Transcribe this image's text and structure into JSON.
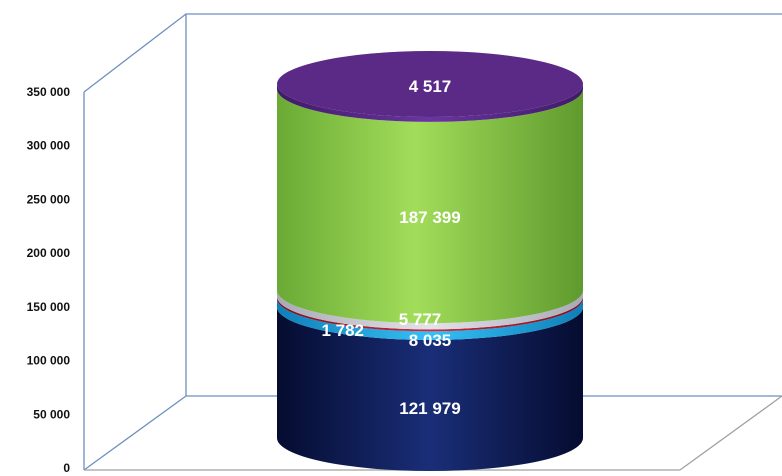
{
  "chart_data": {
    "type": "bar",
    "subtype": "stacked-3d-cylinder",
    "categories": [
      ""
    ],
    "series": [
      {
        "values": [
          121979
        ],
        "color": "#0d1f5c",
        "label": "121 979"
      },
      {
        "values": [
          8035
        ],
        "color": "#1fa3e0",
        "label": "8 035"
      },
      {
        "values": [
          1782
        ],
        "color": "#b01e2e",
        "label": "1 782"
      },
      {
        "values": [
          5777
        ],
        "color": "#c9c9d3",
        "label": "5 777"
      },
      {
        "values": [
          187399
        ],
        "color": "#8fcf4a",
        "label": "187 399"
      },
      {
        "values": [
          4517
        ],
        "color": "#5a2a86",
        "label": "4 517"
      }
    ],
    "yticks": [
      "0",
      "50 000",
      "100 000",
      "150 000",
      "200 000",
      "250 000",
      "300 000",
      "350 000"
    ],
    "ylim": [
      0,
      350000
    ],
    "grid": false,
    "legend": "none"
  }
}
